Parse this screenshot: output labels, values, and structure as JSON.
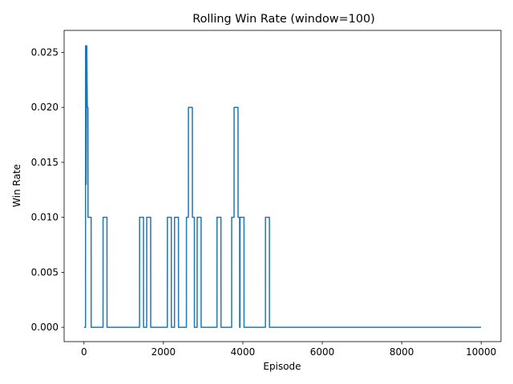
{
  "chart_data": {
    "type": "line",
    "title": "Rolling Win Rate (window=100)",
    "xlabel": "Episode",
    "ylabel": "Win Rate",
    "xlim": [
      -500,
      10500
    ],
    "ylim": [
      -0.0013,
      0.027
    ],
    "x_ticks": [
      {
        "value": 0,
        "label": "0"
      },
      {
        "value": 2000,
        "label": "2000"
      },
      {
        "value": 4000,
        "label": "4000"
      },
      {
        "value": 6000,
        "label": "6000"
      },
      {
        "value": 8000,
        "label": "8000"
      },
      {
        "value": 10000,
        "label": "10000"
      }
    ],
    "y_ticks": [
      {
        "value": 0.0,
        "label": "0.000"
      },
      {
        "value": 0.005,
        "label": "0.005"
      },
      {
        "value": 0.01,
        "label": "0.010"
      },
      {
        "value": 0.015,
        "label": "0.015"
      },
      {
        "value": 0.02,
        "label": "0.020"
      },
      {
        "value": 0.025,
        "label": "0.025"
      }
    ],
    "grid": false,
    "legend": "none",
    "series": [
      {
        "color": "#1f77b4",
        "x": [
          0,
          39,
          40,
          55,
          56,
          70,
          85,
          86,
          100,
          101,
          149,
          150,
          180,
          181,
          480,
          481,
          579,
          580,
          1399,
          1400,
          1499,
          1500,
          1579,
          1580,
          1679,
          1680,
          2099,
          2100,
          2199,
          2200,
          2279,
          2280,
          2379,
          2380,
          2579,
          2580,
          2629,
          2630,
          2729,
          2730,
          2779,
          2780,
          2849,
          2850,
          2949,
          2950,
          3349,
          3350,
          3449,
          3450,
          3719,
          3720,
          3779,
          3780,
          3819,
          3820,
          3879,
          3880,
          3919,
          3920,
          3929,
          3930,
          3979,
          3980,
          4029,
          4030,
          4569,
          4570,
          4669,
          4670,
          10000
        ],
        "y": [
          0,
          0,
          0.0256,
          0.0256,
          0.013,
          0.0256,
          0.02,
          0.02,
          0.02,
          0.01,
          0.01,
          0.01,
          0.01,
          0,
          0,
          0.01,
          0.01,
          0,
          0,
          0.01,
          0.01,
          0,
          0,
          0.01,
          0.01,
          0,
          0,
          0.01,
          0.01,
          0,
          0,
          0.01,
          0.01,
          0,
          0,
          0.01,
          0.01,
          0.02,
          0.02,
          0.01,
          0.01,
          0,
          0,
          0.01,
          0.01,
          0,
          0,
          0.01,
          0.01,
          0,
          0,
          0.01,
          0.01,
          0.02,
          0.02,
          0.02,
          0.02,
          0.01,
          0.01,
          0,
          0,
          0.01,
          0.01,
          0.01,
          0.01,
          0,
          0,
          0.01,
          0.01,
          0,
          0
        ]
      }
    ]
  }
}
